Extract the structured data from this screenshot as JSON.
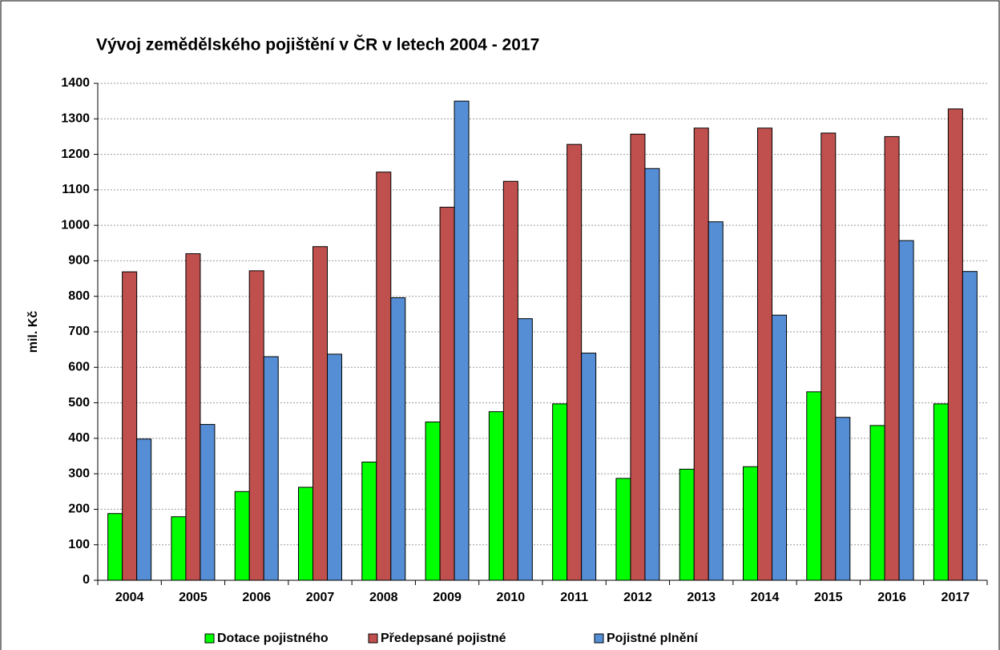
{
  "chart_data": {
    "type": "bar",
    "title": "Vývoj zemědělského pojištění v ČR v letech 2004 - 2017",
    "ylabel": "mil. Kč",
    "categories": [
      "2004",
      "2005",
      "2006",
      "2007",
      "2008",
      "2009",
      "2010",
      "2011",
      "2012",
      "2013",
      "2014",
      "2015",
      "2016",
      "2017"
    ],
    "series": [
      {
        "name": "Dotace pojistného",
        "color": "#00ff00",
        "values": [
          188,
          179,
          250,
          262,
          333,
          446,
          475,
          497,
          287,
          313,
          320,
          531,
          436,
          497
        ]
      },
      {
        "name": "Předepsané pojistné",
        "color": "#c0504d",
        "values": [
          869,
          920,
          872,
          940,
          1150,
          1051,
          1124,
          1228,
          1257,
          1274,
          1274,
          1260,
          1250,
          1328
        ]
      },
      {
        "name": "Pojistné plnění",
        "color": "#558ed5",
        "values": [
          398,
          439,
          630,
          637,
          796,
          1350,
          737,
          640,
          1160,
          1010,
          747,
          459,
          957,
          870
        ]
      }
    ],
    "ylim": [
      0,
      1400
    ],
    "yticks": [
      0,
      100,
      200,
      300,
      400,
      500,
      600,
      700,
      800,
      900,
      1000,
      1100,
      1200,
      1300,
      1400
    ],
    "grid": true,
    "legend": "bottom"
  }
}
